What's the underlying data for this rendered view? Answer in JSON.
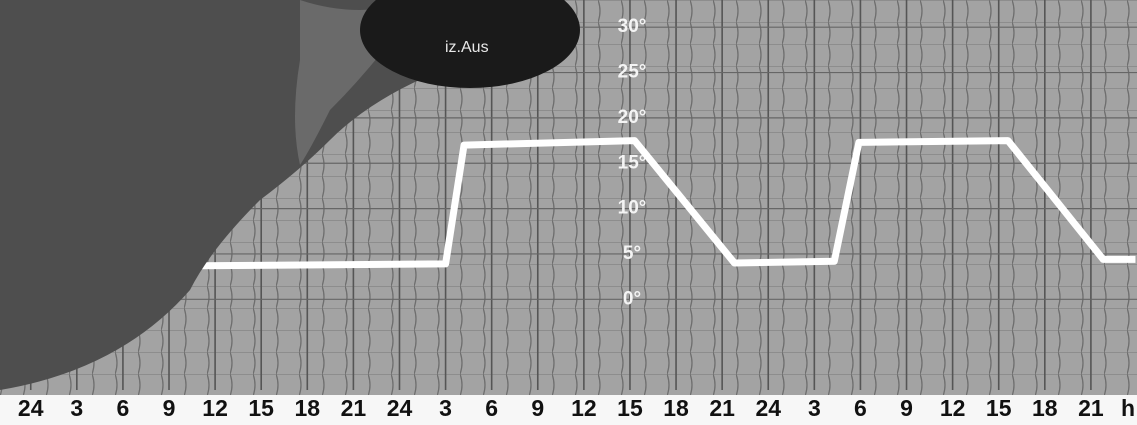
{
  "chart_data": {
    "type": "line",
    "annotation": "iz.Aus",
    "x_unit": "h",
    "x": [
      11,
      27,
      28.2,
      39.3,
      45.8,
      52.3,
      53.9,
      63.6,
      69.8,
      71.9
    ],
    "values": [
      3.7,
      3.9,
      17,
      17.5,
      4,
      4.2,
      17.3,
      17.5,
      4.4,
      4.4
    ],
    "color": "#ffffff",
    "xlim": [
      -2,
      72
    ],
    "ylim": [
      -10,
      33
    ],
    "xticks": [
      {
        "value": 0,
        "label": "24"
      },
      3,
      6,
      9,
      12,
      15,
      18,
      21,
      {
        "value": 24,
        "label": "24"
      },
      {
        "value": 27,
        "label": "3"
      },
      {
        "value": 30,
        "label": "6"
      },
      {
        "value": 33,
        "label": "9"
      },
      {
        "value": 36,
        "label": "12"
      },
      {
        "value": 39,
        "label": "15"
      },
      {
        "value": 42,
        "label": "18"
      },
      {
        "value": 45,
        "label": "21"
      },
      {
        "value": 48,
        "label": "24"
      },
      {
        "value": 51,
        "label": "3"
      },
      {
        "value": 54,
        "label": "6"
      },
      {
        "value": 57,
        "label": "9"
      },
      {
        "value": 60,
        "label": "12"
      },
      {
        "value": 63,
        "label": "15"
      },
      {
        "value": 66,
        "label": "18"
      },
      {
        "value": 69,
        "label": "21"
      }
    ],
    "yticks": [
      {
        "value": 0,
        "label": "0°"
      },
      {
        "value": 5,
        "label": "5°"
      },
      {
        "value": 10,
        "label": "10°"
      },
      {
        "value": 15,
        "label": "15°"
      },
      {
        "value": 20,
        "label": "20°"
      },
      {
        "value": 25,
        "label": "25°"
      },
      {
        "value": 30,
        "label": "30°"
      }
    ],
    "grid": true
  }
}
